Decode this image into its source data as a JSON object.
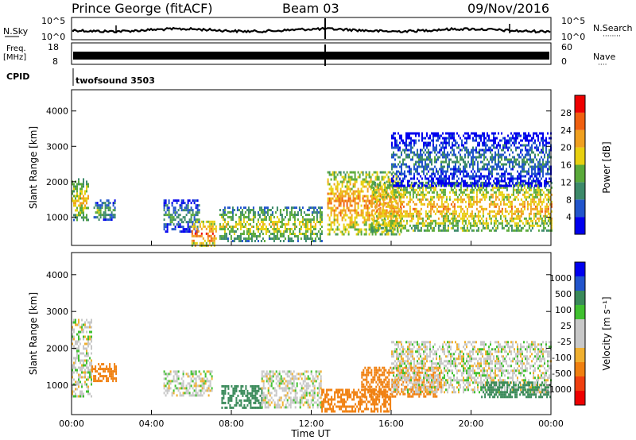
{
  "header": {
    "title": "Prince George (fitACF)",
    "beam": "Beam 03",
    "date": "09/Nov/2016"
  },
  "strips": {
    "nsky_label": "N.Sky",
    "nsky_ticks": [
      "10^5",
      "10^0"
    ],
    "nsearch_label": "N.Search",
    "nsearch_ticks": [
      "10^5",
      "10^0"
    ],
    "freq_label": "Freq.",
    "freq_unit": "[MHz]",
    "freq_ticks": [
      "18",
      "8"
    ],
    "nave_label": "Nave",
    "nave_ticks": [
      "60",
      "0"
    ],
    "cpid_label": "CPID",
    "cpid_value": "twofsound 3503"
  },
  "colors": {
    "power_scale": [
      "#0000ee",
      "#2255cc",
      "#3d8a6a",
      "#5aaa3a",
      "#e8d010",
      "#f0a020",
      "#f06010",
      "#ee0000"
    ],
    "velocity_scale": [
      "#ee0000",
      "#f04010",
      "#f08010",
      "#f0b030",
      "#c8c8c8",
      "#c8c8c8",
      "#40c030",
      "#3a8a5a",
      "#2255cc",
      "#0000ee"
    ]
  },
  "chart_data": [
    {
      "type": "heatmap",
      "name": "power",
      "ylabel": "Slant Range [km]",
      "y_ticks": [
        1000,
        2000,
        3000,
        4000
      ],
      "ylim": [
        200,
        4600
      ],
      "xlim_hours": [
        0,
        24
      ],
      "colorbar_label": "Power [dB]",
      "colorbar_ticks": [
        4,
        8,
        12,
        16,
        20,
        24,
        28
      ],
      "colorbar_range": [
        0,
        32
      ],
      "echo_regions": [
        {
          "t0": 0.0,
          "t1": 0.8,
          "r0": 900,
          "r1": 2100,
          "value": 20
        },
        {
          "t0": 1.1,
          "t1": 2.2,
          "r0": 900,
          "r1": 1500,
          "value": 14
        },
        {
          "t0": 4.6,
          "t1": 6.4,
          "r0": 600,
          "r1": 1500,
          "value": 12
        },
        {
          "t0": 6.0,
          "t1": 7.2,
          "r0": 200,
          "r1": 900,
          "value": 26
        },
        {
          "t0": 7.4,
          "t1": 12.5,
          "r0": 300,
          "r1": 1300,
          "value": 18
        },
        {
          "t0": 12.8,
          "t1": 16.5,
          "r0": 500,
          "r1": 2300,
          "value": 24
        },
        {
          "t0": 15.0,
          "t1": 24.0,
          "r0": 600,
          "r1": 2000,
          "value": 22
        },
        {
          "t0": 16.0,
          "t1": 24.0,
          "r0": 1900,
          "r1": 3400,
          "value": 10
        }
      ]
    },
    {
      "type": "heatmap",
      "name": "velocity",
      "ylabel": "Slant Range [km]",
      "y_ticks": [
        1000,
        2000,
        3000,
        4000
      ],
      "ylim": [
        200,
        4600
      ],
      "xlim_hours": [
        0,
        24
      ],
      "xlabel": "Time UT",
      "x_ticks": [
        "00:00",
        "04:00",
        "08:00",
        "12:00",
        "16:00",
        "20:00",
        "00:00"
      ],
      "colorbar_label": "Velocity [m s⁻¹]",
      "colorbar_ticks": [
        1000,
        500,
        100,
        25,
        -25,
        -100,
        -500,
        -1000
      ],
      "echo_regions": [
        {
          "t0": 0.0,
          "t1": 1.0,
          "r0": 700,
          "r1": 2800,
          "value": 0
        },
        {
          "t0": 1.0,
          "t1": 2.2,
          "r0": 1100,
          "r1": 1600,
          "value": -150
        },
        {
          "t0": 4.6,
          "t1": 7.0,
          "r0": 700,
          "r1": 1400,
          "value": 0
        },
        {
          "t0": 7.5,
          "t1": 9.5,
          "r0": 400,
          "r1": 1000,
          "value": 150
        },
        {
          "t0": 9.5,
          "t1": 12.5,
          "r0": 400,
          "r1": 1400,
          "value": 0
        },
        {
          "t0": 12.5,
          "t1": 16.0,
          "r0": 300,
          "r1": 900,
          "value": -200
        },
        {
          "t0": 14.5,
          "t1": 18.5,
          "r0": 700,
          "r1": 1500,
          "value": -150
        },
        {
          "t0": 16.0,
          "t1": 24.0,
          "r0": 800,
          "r1": 2200,
          "value": 0
        },
        {
          "t0": 20.5,
          "t1": 24.0,
          "r0": 700,
          "r1": 1100,
          "value": 150
        }
      ]
    }
  ]
}
